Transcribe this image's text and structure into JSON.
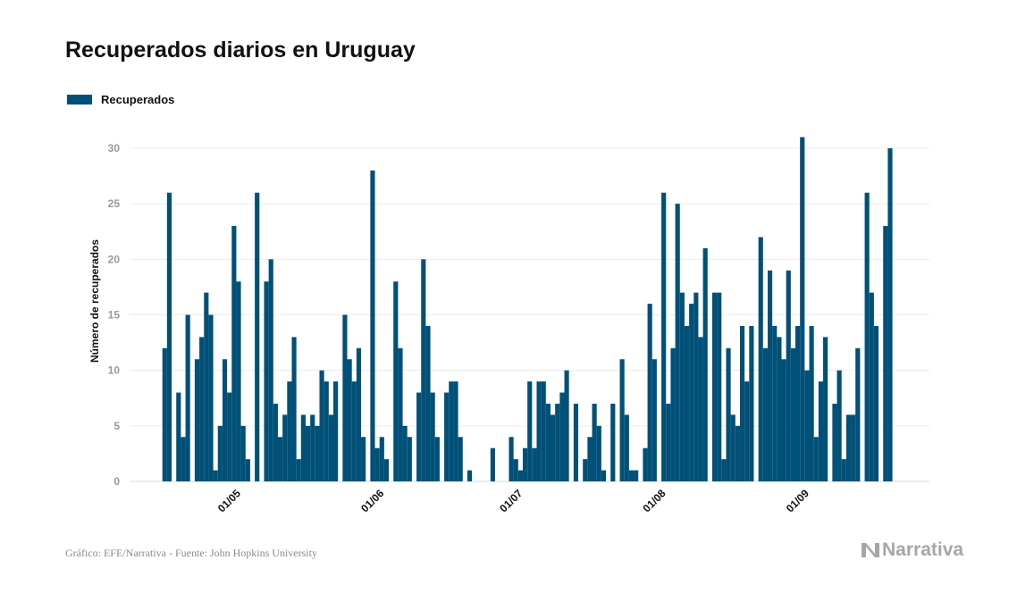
{
  "title": "Recuperados diarios en Uruguay",
  "footer": "Gráfico: EFE/Narrativa - Fuente: John Hopkins University",
  "logo_text": "Narrativa",
  "colors": {
    "bar": "#005078",
    "grid": "#ececec",
    "tick_text": "#999999",
    "logo": "#a6a6a6"
  },
  "chart_data": {
    "type": "bar",
    "title": "Recuperados diarios en Uruguay",
    "xlabel": "",
    "ylabel": "Número de recuperados",
    "ylim": [
      0,
      31
    ],
    "yticks": [
      0,
      5,
      10,
      15,
      20,
      25,
      30
    ],
    "xticks": [
      "01/05",
      "01/06",
      "01/07",
      "01/08",
      "01/09"
    ],
    "grid": "horizontal",
    "legend": "top-left",
    "series": [
      {
        "name": "Recuperados",
        "color": "#005078"
      }
    ],
    "x": [
      "14/04",
      "15/04",
      "16/04",
      "17/04",
      "18/04",
      "19/04",
      "20/04",
      "21/04",
      "22/04",
      "23/04",
      "24/04",
      "25/04",
      "26/04",
      "27/04",
      "28/04",
      "29/04",
      "30/04",
      "01/05",
      "02/05",
      "03/05",
      "04/05",
      "05/05",
      "06/05",
      "07/05",
      "08/05",
      "09/05",
      "10/05",
      "11/05",
      "12/05",
      "13/05",
      "14/05",
      "15/05",
      "16/05",
      "17/05",
      "18/05",
      "19/05",
      "20/05",
      "21/05",
      "22/05",
      "23/05",
      "24/05",
      "25/05",
      "26/05",
      "27/05",
      "28/05",
      "29/05",
      "30/05",
      "31/05",
      "01/06",
      "02/06",
      "03/06",
      "04/06",
      "05/06",
      "06/06",
      "07/06",
      "08/06",
      "09/06",
      "10/06",
      "11/06",
      "12/06",
      "13/06",
      "14/06",
      "15/06",
      "16/06",
      "17/06",
      "18/06",
      "19/06",
      "20/06",
      "21/06",
      "22/06",
      "23/06",
      "24/06",
      "25/06",
      "26/06",
      "27/06",
      "28/06",
      "29/06",
      "30/06",
      "01/07",
      "02/07",
      "03/07",
      "04/07",
      "05/07",
      "06/07",
      "07/07",
      "08/07",
      "09/07",
      "10/07",
      "11/07",
      "12/07",
      "13/07",
      "14/07",
      "15/07",
      "16/07",
      "17/07",
      "18/07",
      "19/07",
      "20/07",
      "21/07",
      "22/07",
      "23/07",
      "24/07",
      "25/07",
      "26/07",
      "27/07",
      "28/07",
      "29/07",
      "30/07",
      "31/07",
      "01/08",
      "02/08",
      "03/08",
      "04/08",
      "05/08",
      "06/08",
      "07/08",
      "08/08",
      "09/08",
      "10/08",
      "11/08",
      "12/08",
      "13/08",
      "14/08",
      "15/08",
      "16/08",
      "17/08",
      "18/08",
      "19/08",
      "20/08",
      "21/08",
      "22/08",
      "23/08",
      "24/08",
      "25/08",
      "26/08",
      "27/08",
      "28/08",
      "29/08",
      "30/08",
      "31/08",
      "01/09",
      "02/09",
      "03/09",
      "04/09",
      "05/09",
      "06/09",
      "07/09",
      "08/09",
      "09/09",
      "10/09",
      "11/09",
      "12/09",
      "13/09",
      "14/09",
      "15/09",
      "16/09",
      "17/09",
      "18/09"
    ],
    "values": [
      12,
      26,
      0,
      8,
      4,
      15,
      0,
      11,
      13,
      17,
      15,
      1,
      5,
      11,
      8,
      23,
      18,
      5,
      2,
      0,
      26,
      0,
      18,
      20,
      7,
      4,
      6,
      9,
      13,
      2,
      6,
      5,
      6,
      5,
      10,
      9,
      6,
      9,
      0,
      15,
      11,
      9,
      12,
      4,
      0,
      28,
      3,
      4,
      2,
      0,
      18,
      12,
      5,
      4,
      0,
      8,
      20,
      14,
      8,
      4,
      0,
      8,
      9,
      9,
      4,
      0,
      1,
      0,
      0,
      0,
      0,
      3,
      0,
      0,
      0,
      4,
      2,
      1,
      3,
      9,
      3,
      9,
      9,
      7,
      6,
      7,
      8,
      10,
      0,
      7,
      0,
      2,
      4,
      7,
      5,
      1,
      0,
      7,
      0,
      11,
      6,
      1,
      1,
      0,
      3,
      16,
      11,
      0,
      26,
      7,
      12,
      25,
      17,
      14,
      16,
      17,
      13,
      21,
      0,
      17,
      17,
      2,
      12,
      6,
      5,
      14,
      9,
      14,
      0,
      22,
      12,
      19,
      14,
      13,
      11,
      19,
      12,
      14,
      31,
      10,
      14,
      4,
      9,
      13,
      0,
      7,
      10,
      2,
      6,
      6,
      12,
      0,
      26,
      17,
      14,
      0,
      23,
      30
    ]
  }
}
